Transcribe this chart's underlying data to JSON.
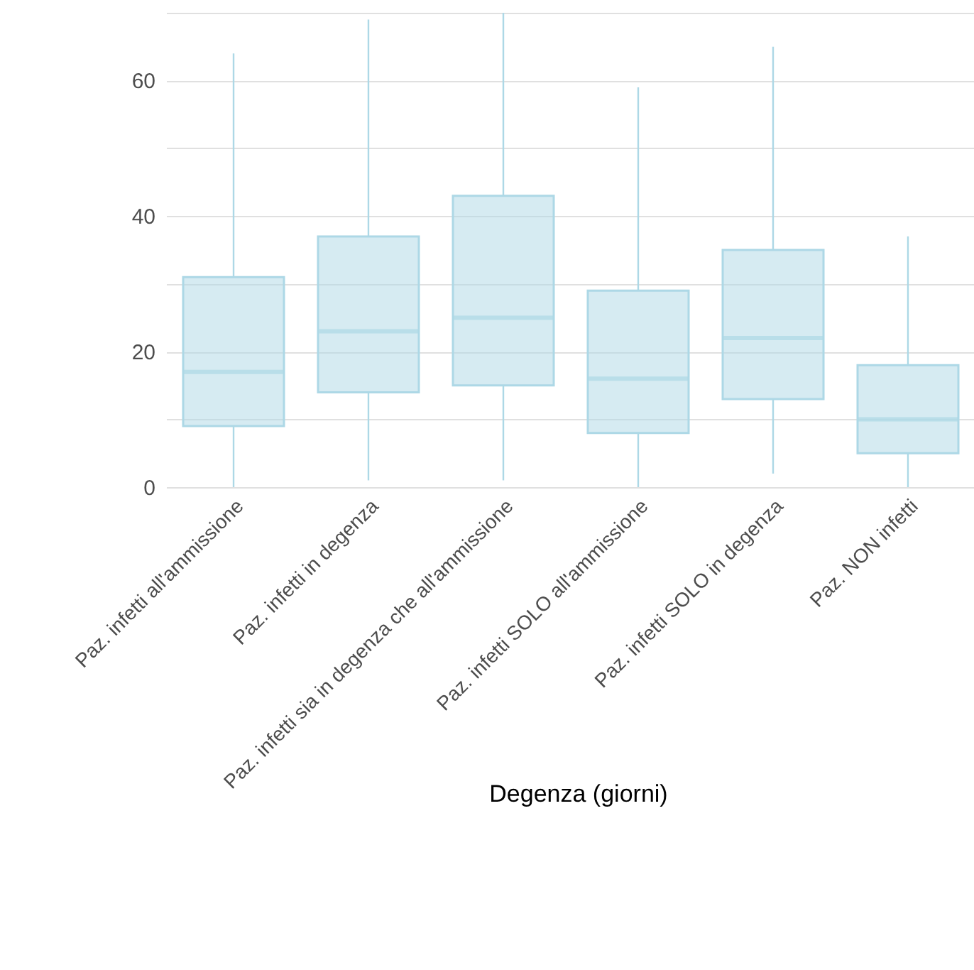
{
  "chart_data": {
    "type": "box",
    "xlabel": "Degenza (giorni)",
    "categories": [
      "Paz. infetti all'ammissione",
      "Paz. infetti in degenza",
      "Paz. infetti sia in degenza che all'ammissione",
      "Paz. infetti SOLO all'ammissione",
      "Paz. infetti SOLO in degenza",
      "Paz. NON infetti"
    ],
    "series": [
      {
        "color": "#add8e6",
        "boxes": [
          {
            "low": 0,
            "q1": 9,
            "median": 17,
            "q3": 31,
            "high": 64
          },
          {
            "low": 1,
            "q1": 14,
            "median": 23,
            "q3": 37,
            "high": 69
          },
          {
            "low": 1,
            "q1": 15,
            "median": 25,
            "q3": 43,
            "high": 70
          },
          {
            "low": 0,
            "q1": 8,
            "median": 16,
            "q3": 29,
            "high": 59
          },
          {
            "low": 2,
            "q1": 13,
            "median": 22,
            "q3": 35,
            "high": 65
          },
          {
            "low": 0,
            "q1": 5,
            "median": 10,
            "q3": 18,
            "high": 37
          }
        ]
      }
    ],
    "ylim": [
      0,
      70
    ],
    "yticks": [
      0,
      {
        "value": 10,
        "label": null
      },
      20,
      {
        "value": 30,
        "label": null
      },
      40,
      {
        "value": 50,
        "label": null
      },
      60,
      {
        "value": 70,
        "label": null
      }
    ],
    "grid": "y"
  }
}
